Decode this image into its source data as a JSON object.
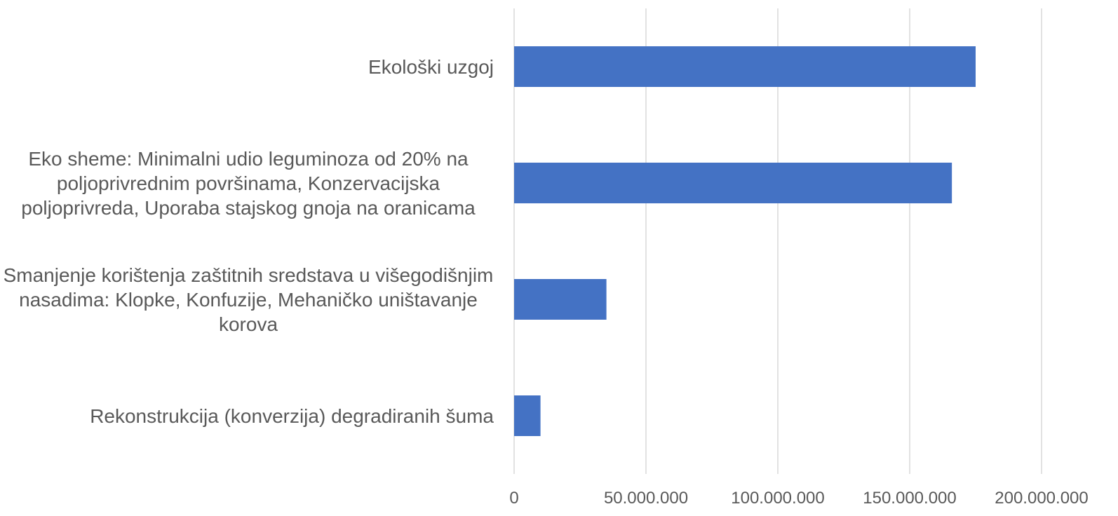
{
  "chart_data": {
    "type": "bar",
    "orientation": "horizontal",
    "categories": [
      "Ekološki uzgoj",
      "Eko sheme: Minimalni udio leguminoza od 20% na poljoprivrednim površinama, Konzervacijska poljoprivreda, Uporaba stajskog gnoja na oranicama",
      "Smanjenje korištenja zaštitnih sredstava u višegodišnjim nasadima: Klopke, Konfuzije, Mehaničko uništavanje korova",
      "Rekonstrukcija (konverzija) degradiranih šuma"
    ],
    "values": [
      175000000,
      166000000,
      35000000,
      10000000
    ],
    "color": "#4472c4",
    "xlim": [
      0,
      200000000
    ],
    "xticks": [
      0,
      {
        "value": 50000000,
        "label": "50.000.000"
      },
      {
        "value": 100000000,
        "label": "100.000.000"
      },
      {
        "value": 150000000,
        "label": "150.000.000"
      },
      {
        "value": 200000000,
        "label": "200.000.000"
      }
    ],
    "grid": true
  }
}
